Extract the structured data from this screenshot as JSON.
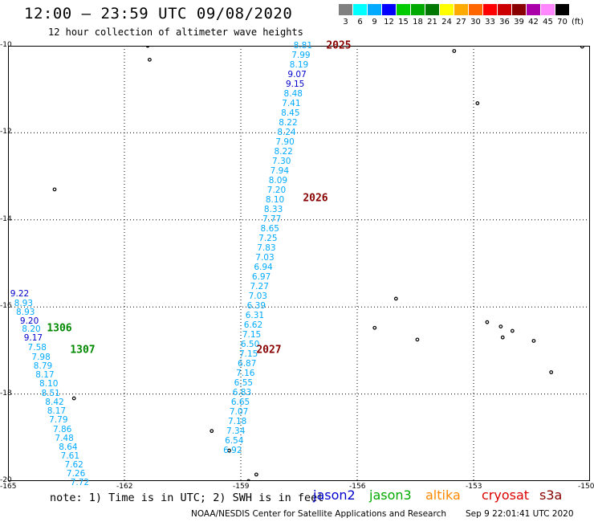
{
  "header": {
    "title": "12:00 – 23:59 UTC 09/08/2020",
    "subtitle": "12 hour collection of altimeter wave heights"
  },
  "legend": {
    "unit": "(ft)",
    "bins": [
      {
        "label": "3",
        "color": "#808080"
      },
      {
        "label": "6",
        "color": "#00ffff"
      },
      {
        "label": "9",
        "color": "#00aaff"
      },
      {
        "label": "12",
        "color": "#0000ff"
      },
      {
        "label": "15",
        "color": "#00cc00"
      },
      {
        "label": "18",
        "color": "#00aa00"
      },
      {
        "label": "21",
        "color": "#007700"
      },
      {
        "label": "24",
        "color": "#ffff00"
      },
      {
        "label": "27",
        "color": "#ffaa00"
      },
      {
        "label": "30",
        "color": "#ff6600"
      },
      {
        "label": "33",
        "color": "#ff0000"
      },
      {
        "label": "36",
        "color": "#cc0000"
      },
      {
        "label": "39",
        "color": "#880000"
      },
      {
        "label": "42",
        "color": "#aa00aa"
      },
      {
        "label": "45",
        "color": "#ff88ff"
      },
      {
        "label": "70",
        "color": "#000000"
      }
    ]
  },
  "axes": {
    "lat_range": [
      -20,
      -10
    ],
    "lon_range": [
      -165,
      -150
    ],
    "lat_ticks": [
      "-10",
      "-12",
      "-14",
      "-16",
      "-18",
      "-20"
    ],
    "lon_ticks": [
      "-165",
      "-162",
      "-159",
      "-156",
      "-153",
      "-150"
    ]
  },
  "tracks": {
    "color": "#00aaff",
    "dark_color": "#0000cc",
    "pass_color_jason3": "#008800",
    "pass_color_cryosat": "#880000",
    "passes": [
      {
        "label": "2025",
        "lon": -156.8,
        "lat": -10.0,
        "sat": "cryosat"
      },
      {
        "label": "2026",
        "lon": -157.4,
        "lat": -13.5,
        "sat": "cryosat"
      },
      {
        "label": "2027",
        "lon": -158.6,
        "lat": -17.0,
        "sat": "cryosat"
      },
      {
        "label": "1306",
        "lon": -164.0,
        "lat": -16.5,
        "sat": "jason3"
      },
      {
        "label": "1307",
        "lon": -163.4,
        "lat": -17.0,
        "sat": "jason3"
      }
    ],
    "eastern": [
      {
        "v": "8.81",
        "lon": -157.4,
        "lat": -10.0
      },
      {
        "v": "7.99",
        "lon": -157.45,
        "lat": -10.22
      },
      {
        "v": "8.19",
        "lon": -157.5,
        "lat": -10.44
      },
      {
        "v": "9.07",
        "lon": -157.55,
        "lat": -10.66,
        "dark": true
      },
      {
        "v": "9.15",
        "lon": -157.6,
        "lat": -10.88,
        "dark": true
      },
      {
        "v": "8.48",
        "lon": -157.65,
        "lat": -11.1
      },
      {
        "v": "7.41",
        "lon": -157.7,
        "lat": -11.33
      },
      {
        "v": "8.45",
        "lon": -157.72,
        "lat": -11.55
      },
      {
        "v": "8.22",
        "lon": -157.78,
        "lat": -11.77
      },
      {
        "v": "8.24",
        "lon": -157.82,
        "lat": -11.99
      },
      {
        "v": "7.90",
        "lon": -157.86,
        "lat": -12.21
      },
      {
        "v": "8.22",
        "lon": -157.9,
        "lat": -12.43
      },
      {
        "v": "7.30",
        "lon": -157.95,
        "lat": -12.66
      },
      {
        "v": "7.94",
        "lon": -158.0,
        "lat": -12.88
      },
      {
        "v": "8.09",
        "lon": -158.04,
        "lat": -13.1
      },
      {
        "v": "7.20",
        "lon": -158.08,
        "lat": -13.32
      },
      {
        "v": "8.10",
        "lon": -158.12,
        "lat": -13.54
      },
      {
        "v": "8.33",
        "lon": -158.16,
        "lat": -13.76
      },
      {
        "v": "7.77",
        "lon": -158.2,
        "lat": -13.99
      },
      {
        "v": "8.65",
        "lon": -158.25,
        "lat": -14.21
      },
      {
        "v": "7.25",
        "lon": -158.3,
        "lat": -14.43
      },
      {
        "v": "7.83",
        "lon": -158.34,
        "lat": -14.65
      },
      {
        "v": "7.03",
        "lon": -158.38,
        "lat": -14.87
      },
      {
        "v": "6.94",
        "lon": -158.42,
        "lat": -15.09
      },
      {
        "v": "6.97",
        "lon": -158.47,
        "lat": -15.32
      },
      {
        "v": "7.27",
        "lon": -158.52,
        "lat": -15.54
      },
      {
        "v": "7.03",
        "lon": -158.56,
        "lat": -15.76
      },
      {
        "v": "6.39",
        "lon": -158.6,
        "lat": -15.98
      },
      {
        "v": "6.31",
        "lon": -158.64,
        "lat": -16.2
      },
      {
        "v": "6.62",
        "lon": -158.68,
        "lat": -16.42
      },
      {
        "v": "7.15",
        "lon": -158.72,
        "lat": -16.65
      },
      {
        "v": "6.50",
        "lon": -158.76,
        "lat": -16.87
      },
      {
        "v": "7.15",
        "lon": -158.8,
        "lat": -17.09
      },
      {
        "v": "6.87",
        "lon": -158.84,
        "lat": -17.31
      },
      {
        "v": "7.16",
        "lon": -158.88,
        "lat": -17.53
      },
      {
        "v": "6.55",
        "lon": -158.93,
        "lat": -17.75
      },
      {
        "v": "6.83",
        "lon": -158.97,
        "lat": -17.97
      },
      {
        "v": "6.65",
        "lon": -159.01,
        "lat": -18.2
      },
      {
        "v": "7.07",
        "lon": -159.05,
        "lat": -18.42
      },
      {
        "v": "7.18",
        "lon": -159.09,
        "lat": -18.64
      },
      {
        "v": "7.34",
        "lon": -159.13,
        "lat": -18.86
      },
      {
        "v": "6.54",
        "lon": -159.17,
        "lat": -19.08
      },
      {
        "v": "6.92",
        "lon": -159.21,
        "lat": -19.3
      }
    ],
    "western": [
      {
        "v": "9.22",
        "lon": -164.7,
        "lat": -15.7,
        "dark": true
      },
      {
        "v": "8.93",
        "lon": -164.6,
        "lat": -15.92
      },
      {
        "v": "8.93",
        "lon": -164.55,
        "lat": -16.12
      },
      {
        "v": "9.20",
        "lon": -164.45,
        "lat": -16.32,
        "dark": true
      },
      {
        "v": "8.20",
        "lon": -164.4,
        "lat": -16.52
      },
      {
        "v": "9.17",
        "lon": -164.35,
        "lat": -16.72,
        "dark": true
      },
      {
        "v": "7.58",
        "lon": -164.25,
        "lat": -16.94
      },
      {
        "v": "7.98",
        "lon": -164.15,
        "lat": -17.16
      },
      {
        "v": "8.79",
        "lon": -164.1,
        "lat": -17.36
      },
      {
        "v": "8.17",
        "lon": -164.05,
        "lat": -17.56
      },
      {
        "v": "8.10",
        "lon": -163.95,
        "lat": -17.76
      },
      {
        "v": "8.51",
        "lon": -163.9,
        "lat": -17.98
      },
      {
        "v": "8.42",
        "lon": -163.8,
        "lat": -18.2
      },
      {
        "v": "8.17",
        "lon": -163.75,
        "lat": -18.4
      },
      {
        "v": "7.79",
        "lon": -163.7,
        "lat": -18.6
      },
      {
        "v": "7.86",
        "lon": -163.6,
        "lat": -18.82
      },
      {
        "v": "7.48",
        "lon": -163.55,
        "lat": -19.02
      },
      {
        "v": "8.64",
        "lon": -163.45,
        "lat": -19.22
      },
      {
        "v": "7.61",
        "lon": -163.4,
        "lat": -19.42
      },
      {
        "v": "7.62",
        "lon": -163.3,
        "lat": -19.64
      },
      {
        "v": "7.26",
        "lon": -163.25,
        "lat": -19.84
      },
      {
        "v": "7.72",
        "lon": -163.15,
        "lat": -20.04
      }
    ]
  },
  "islands": [
    {
      "lon": -161.4,
      "lat": -10.0
    },
    {
      "lon": -161.35,
      "lat": -10.32
    },
    {
      "lon": -163.8,
      "lat": -13.3
    },
    {
      "lon": -153.5,
      "lat": -10.12
    },
    {
      "lon": -152.9,
      "lat": -11.32
    },
    {
      "lon": -155.0,
      "lat": -15.81
    },
    {
      "lon": -155.55,
      "lat": -16.48
    },
    {
      "lon": -154.45,
      "lat": -16.75
    },
    {
      "lon": -152.65,
      "lat": -16.35
    },
    {
      "lon": -152.3,
      "lat": -16.45
    },
    {
      "lon": -152.0,
      "lat": -16.55
    },
    {
      "lon": -151.45,
      "lat": -16.78
    },
    {
      "lon": -152.25,
      "lat": -16.7
    },
    {
      "lon": -151.0,
      "lat": -17.5
    },
    {
      "lon": -163.3,
      "lat": -18.1
    },
    {
      "lon": -159.75,
      "lat": -18.85
    },
    {
      "lon": -159.3,
      "lat": -19.3
    },
    {
      "lon": -158.8,
      "lat": -20.0
    },
    {
      "lon": -158.6,
      "lat": -19.85
    },
    {
      "lon": -150.2,
      "lat": -10.02
    }
  ],
  "footer": {
    "note": "note: 1) Time is in UTC; 2) SWH is in feet",
    "satellites": [
      {
        "name": "jason2",
        "color": "#0000cc"
      },
      {
        "name": "jason3",
        "color": "#00aa00"
      },
      {
        "name": "altika",
        "color": "#ff8800"
      },
      {
        "name": "cryosat",
        "color": "#dd0000"
      },
      {
        "name": "s3a",
        "color": "#880000"
      }
    ],
    "credit": "NOAA/NESDIS Center for Satellite Applications and Research",
    "timestamp": "Sep  9 22:01:41 UTC 2020"
  }
}
